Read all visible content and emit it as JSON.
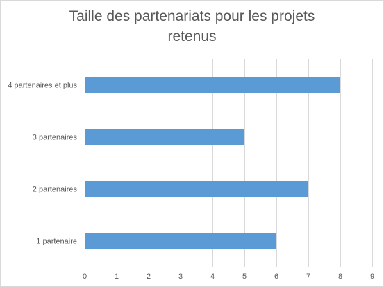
{
  "chart_data": {
    "type": "bar",
    "orientation": "horizontal",
    "title": "Taille des partenariats pour les projets retenus",
    "title_lines": [
      "Taille des partenariats pour les projets",
      "retenus"
    ],
    "categories": [
      "4 partenaires et plus",
      "3 partenaires",
      "2 partenaires",
      "1 partenaire"
    ],
    "values": [
      8,
      5,
      7,
      6
    ],
    "xlabel": "",
    "ylabel": "",
    "xlim": [
      0,
      9
    ],
    "xticks": [
      "0",
      "1",
      "2",
      "3",
      "4",
      "5",
      "6",
      "7",
      "8",
      "9"
    ],
    "grid": true,
    "legend": "none",
    "bar_color": "#5b9bd5",
    "grid_color": "#d9d9d9",
    "label_color": "#595959"
  }
}
